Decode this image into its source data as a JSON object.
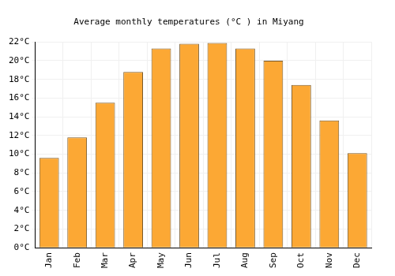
{
  "chart_data": {
    "type": "bar",
    "title": "Average monthly temperatures (°C ) in Miyang",
    "categories": [
      "Jan",
      "Feb",
      "Mar",
      "Apr",
      "May",
      "Jun",
      "Jul",
      "Aug",
      "Sep",
      "Oct",
      "Nov",
      "Dec"
    ],
    "values": [
      9.6,
      11.8,
      15.5,
      18.8,
      21.3,
      21.8,
      21.9,
      21.3,
      20.0,
      17.4,
      13.6,
      10.1
    ],
    "color": "#fca834",
    "ylim": [
      0,
      22
    ],
    "yticks": [
      {
        "value": 0,
        "label": "0°C"
      },
      {
        "value": 2,
        "label": "2°C"
      },
      {
        "value": 4,
        "label": "4°C"
      },
      {
        "value": 6,
        "label": "6°C"
      },
      {
        "value": 8,
        "label": "8°C"
      },
      {
        "value": 10,
        "label": "10°C"
      },
      {
        "value": 12,
        "label": "12°C"
      },
      {
        "value": 14,
        "label": "14°C"
      },
      {
        "value": 16,
        "label": "16°C"
      },
      {
        "value": 18,
        "label": "18°C"
      },
      {
        "value": 20,
        "label": "20°C"
      },
      {
        "value": 22,
        "label": "22°C"
      }
    ],
    "grid": true
  }
}
